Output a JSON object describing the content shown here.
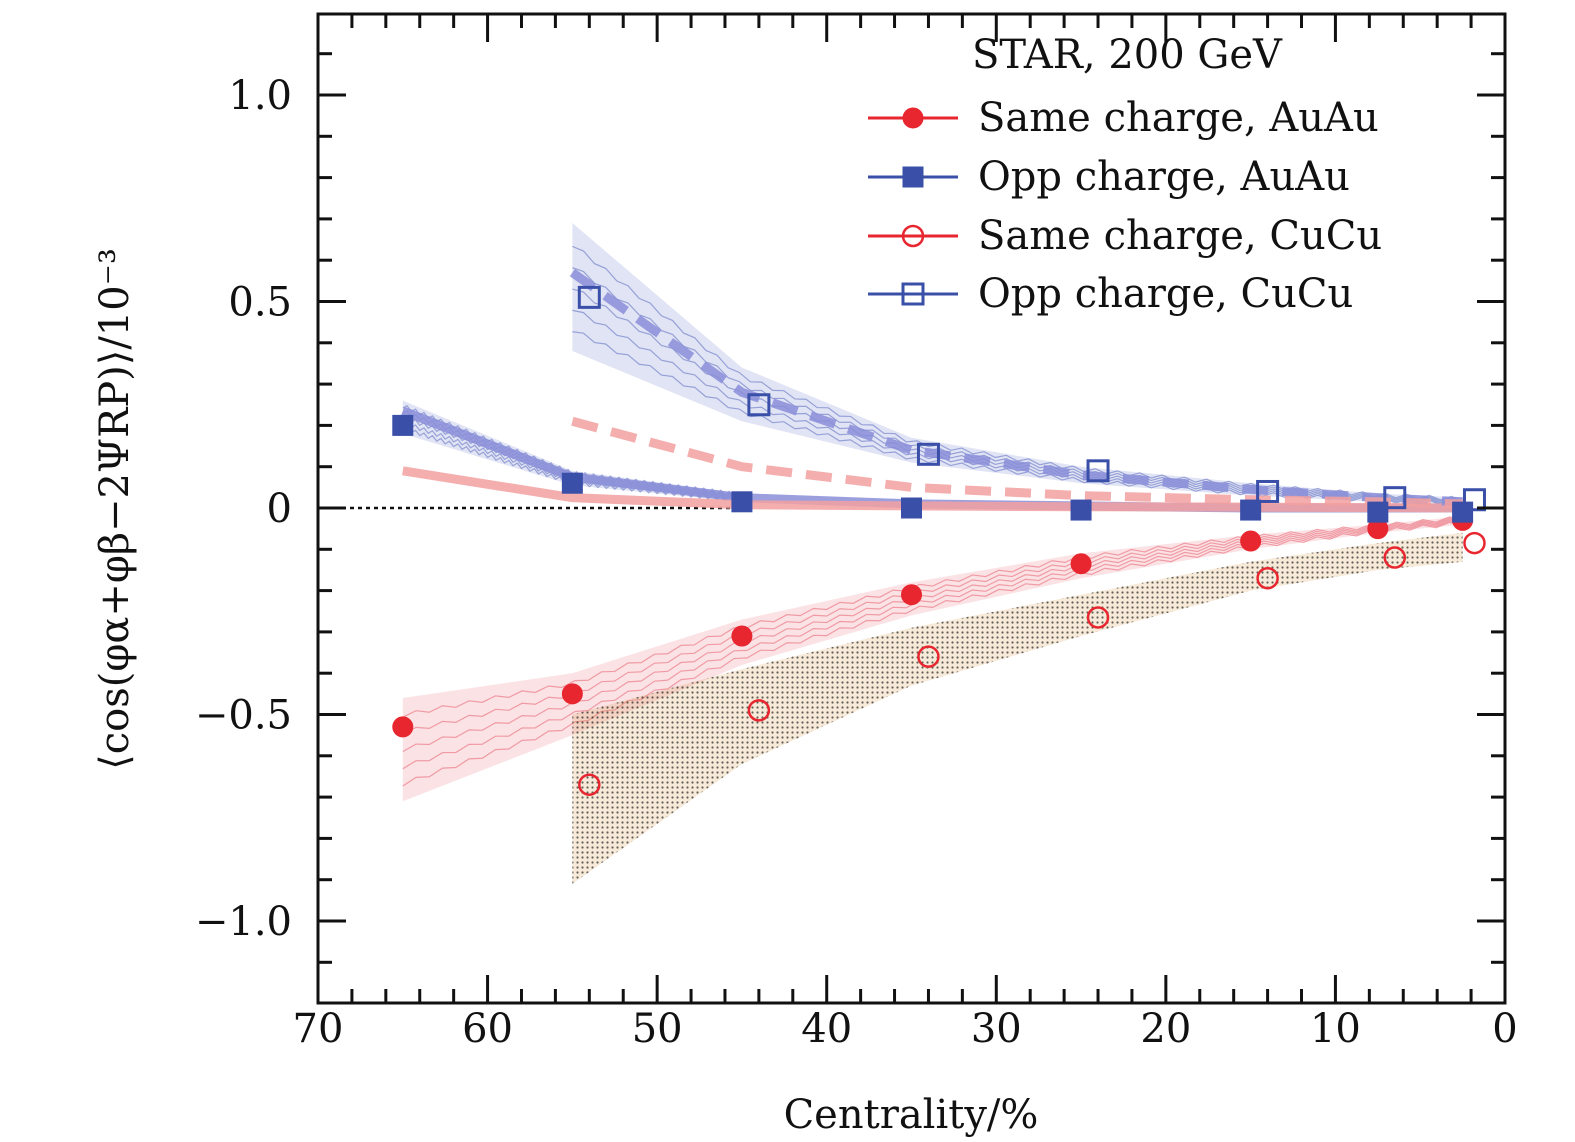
{
  "chart_data": {
    "type": "line",
    "legend_title": "STAR, 200 GeV",
    "legend_placement": "top-right",
    "xlabel": "Centrality/%",
    "ylabel": "⟨cos(φα+φβ−2ΨRP)⟩/10⁻³",
    "xlim": [
      70,
      0
    ],
    "ylim": [
      -1.2,
      1.2
    ],
    "x_ticks": [
      "70",
      "60",
      "50",
      "40",
      "30",
      "20",
      "10",
      "0"
    ],
    "y_ticks": [
      "1.0",
      "0.5",
      "0",
      "−0.5",
      "−1.0"
    ],
    "zero_line": true,
    "series": [
      {
        "name": "Same charge, AuAu",
        "color": "#e8262f",
        "marker": "filled-circle",
        "x": [
          65,
          55,
          45,
          35,
          25,
          15,
          7.5,
          2.5
        ],
        "y": [
          -0.53,
          -0.45,
          -0.31,
          -0.21,
          -0.135,
          -0.08,
          -0.05,
          -0.03
        ]
      },
      {
        "name": "Opp charge, AuAu",
        "color": "#3a4fa8",
        "marker": "filled-square",
        "x": [
          65,
          55,
          45,
          35,
          25,
          15,
          7.5,
          2.5
        ],
        "y": [
          0.2,
          0.06,
          0.015,
          0.0,
          -0.005,
          -0.005,
          -0.01,
          -0.01
        ]
      },
      {
        "name": "Same charge, CuCu",
        "color": "#e8262f",
        "marker": "open-circle",
        "x": [
          54,
          44,
          34,
          24,
          14,
          6.5,
          1.8
        ],
        "y": [
          -0.67,
          -0.49,
          -0.36,
          -0.265,
          -0.17,
          -0.12,
          -0.085
        ]
      },
      {
        "name": "Opp charge, CuCu",
        "color": "#3a4fa8",
        "marker": "open-square",
        "x": [
          54,
          44,
          34,
          24,
          14,
          6.5,
          1.8
        ],
        "y": [
          0.51,
          0.25,
          0.13,
          0.09,
          0.04,
          0.025,
          0.02
        ]
      }
    ],
    "model_curves": [
      {
        "color": "#8a8ed8",
        "style": "solid",
        "x": [
          65,
          55,
          45,
          35,
          25,
          15,
          7.5,
          2.5
        ],
        "y": [
          0.235,
          0.075,
          0.025,
          0.01,
          0.005,
          0.0,
          0.0,
          0.0
        ]
      },
      {
        "color": "#f2a0a0",
        "style": "solid",
        "x": [
          65,
          55,
          45,
          35,
          25,
          15,
          7.5,
          2.5
        ],
        "y": [
          0.09,
          0.025,
          0.008,
          0.005,
          0.003,
          0.002,
          0.001,
          0.0
        ]
      },
      {
        "color": "#8a8ed8",
        "style": "dashed",
        "x": [
          55,
          45,
          35,
          25,
          15,
          7.5,
          2.5
        ],
        "y": [
          0.57,
          0.28,
          0.14,
          0.08,
          0.045,
          0.025,
          0.015
        ]
      },
      {
        "color": "#f2a0a0",
        "style": "dashed",
        "x": [
          55,
          45,
          35,
          25,
          15,
          7.5,
          2.5
        ],
        "y": [
          0.21,
          0.1,
          0.05,
          0.03,
          0.02,
          0.015,
          0.01
        ]
      }
    ],
    "bands": [
      {
        "color": "#e86070",
        "pattern": "wavy",
        "x": [
          65,
          55,
          45,
          35,
          25,
          15,
          7.5,
          2.5
        ],
        "upper": [
          -0.46,
          -0.4,
          -0.27,
          -0.18,
          -0.11,
          -0.065,
          -0.04,
          -0.02
        ],
        "lower": [
          -0.71,
          -0.55,
          -0.38,
          -0.26,
          -0.17,
          -0.1,
          -0.06,
          -0.04
        ]
      },
      {
        "color": "#d08a2a",
        "pattern": "dotted",
        "x": [
          55,
          45,
          35,
          25,
          15,
          7.5,
          2.5
        ],
        "upper": [
          -0.5,
          -0.39,
          -0.29,
          -0.21,
          -0.13,
          -0.085,
          -0.06
        ],
        "lower": [
          -0.91,
          -0.62,
          -0.43,
          -0.31,
          -0.2,
          -0.15,
          -0.13
        ]
      },
      {
        "color": "#5a6ac0",
        "pattern": "wavy",
        "x": [
          55,
          45,
          35,
          25,
          15,
          7.5,
          2.5
        ],
        "upper": [
          0.69,
          0.34,
          0.17,
          0.1,
          0.06,
          0.035,
          0.025
        ],
        "lower": [
          0.38,
          0.21,
          0.11,
          0.06,
          0.03,
          0.015,
          0.008
        ]
      },
      {
        "color": "#5a6ac0",
        "pattern": "wavy",
        "x": [
          65,
          55,
          45
        ],
        "upper": [
          0.26,
          0.09,
          0.035
        ],
        "lower": [
          0.18,
          0.055,
          0.015
        ]
      }
    ]
  }
}
